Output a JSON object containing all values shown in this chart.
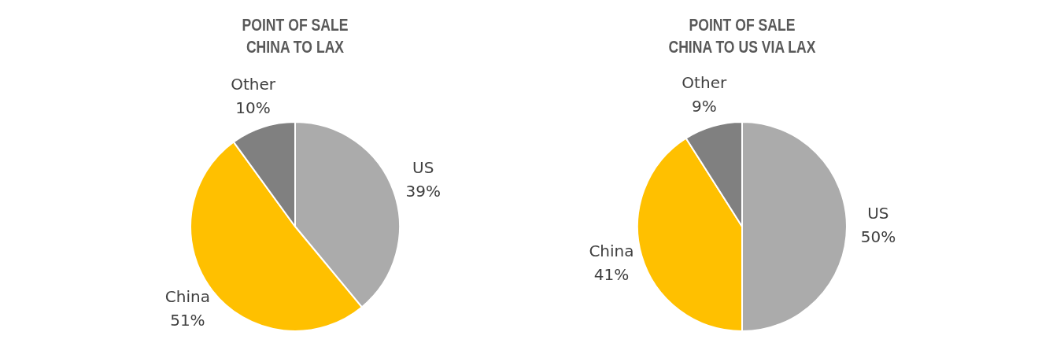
{
  "chart_data": [
    {
      "type": "pie",
      "title": "POINT OF SALE",
      "subtitle": "CHINA TO LAX",
      "categories": [
        "US",
        "China",
        "Other"
      ],
      "values": [
        39,
        51,
        10
      ],
      "value_labels": [
        "39%",
        "51%",
        "10%"
      ],
      "colors": [
        "#ababab",
        "#ffc000",
        "#808080"
      ],
      "legend": false
    },
    {
      "type": "pie",
      "title": "POINT OF SALE",
      "subtitle": "CHINA TO US VIA LAX",
      "categories": [
        "US",
        "China",
        "Other"
      ],
      "values": [
        50,
        41,
        9
      ],
      "value_labels": [
        "50%",
        "41%",
        "9%"
      ],
      "colors": [
        "#ababab",
        "#ffc000",
        "#808080"
      ],
      "legend": false
    }
  ]
}
